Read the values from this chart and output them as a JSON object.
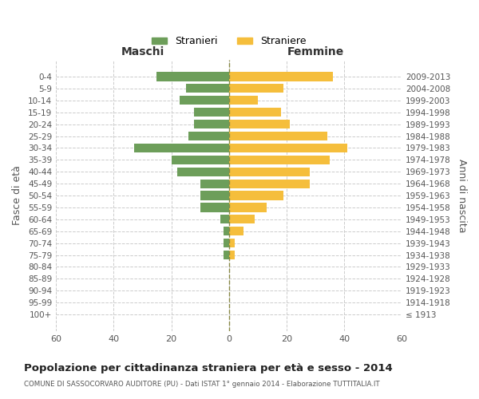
{
  "age_groups": [
    "100+",
    "95-99",
    "90-94",
    "85-89",
    "80-84",
    "75-79",
    "70-74",
    "65-69",
    "60-64",
    "55-59",
    "50-54",
    "45-49",
    "40-44",
    "35-39",
    "30-34",
    "25-29",
    "20-24",
    "15-19",
    "10-14",
    "5-9",
    "0-4"
  ],
  "birth_years": [
    "≤ 1913",
    "1914-1918",
    "1919-1923",
    "1924-1928",
    "1929-1933",
    "1934-1938",
    "1939-1943",
    "1944-1948",
    "1949-1953",
    "1954-1958",
    "1959-1963",
    "1964-1968",
    "1969-1973",
    "1974-1978",
    "1979-1983",
    "1984-1988",
    "1989-1993",
    "1994-1998",
    "1999-2003",
    "2004-2008",
    "2009-2013"
  ],
  "maschi": [
    0,
    0,
    0,
    0,
    0,
    2,
    2,
    2,
    3,
    10,
    10,
    10,
    18,
    20,
    33,
    14,
    12,
    12,
    17,
    15,
    25
  ],
  "femmine": [
    0,
    0,
    0,
    0,
    0,
    2,
    2,
    5,
    9,
    13,
    19,
    28,
    28,
    35,
    41,
    34,
    21,
    18,
    10,
    19,
    36
  ],
  "male_color": "#6d9e5a",
  "female_color": "#f5be3c",
  "background_color": "#ffffff",
  "grid_color": "#cccccc",
  "title": "Popolazione per cittadinanza straniera per età e sesso - 2014",
  "subtitle": "COMUNE DI SASSOCORVARO AUDITORE (PU) - Dati ISTAT 1° gennaio 2014 - Elaborazione TUTTITALIA.IT",
  "xlabel_left": "Maschi",
  "xlabel_right": "Femmine",
  "ylabel_left": "Fasce di età",
  "ylabel_right": "Anni di nascita",
  "legend_male": "Stranieri",
  "legend_female": "Straniere",
  "xlim": 60
}
